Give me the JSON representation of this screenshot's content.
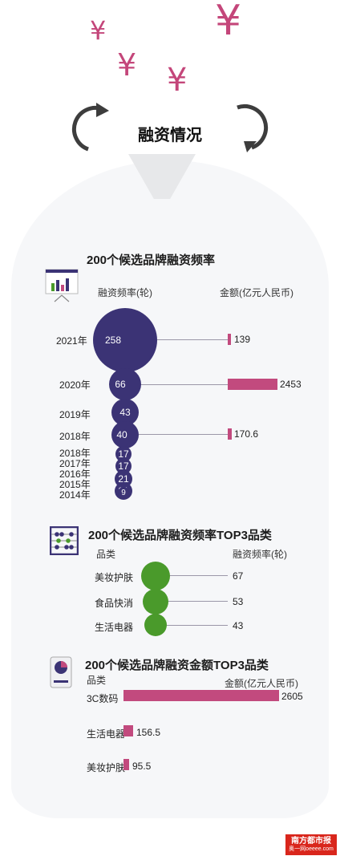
{
  "header": {
    "title": "融资情况"
  },
  "colors": {
    "purple": "#3b3375",
    "pink": "#c24a7e",
    "green": "#4a9a2b"
  },
  "icons": [
    "yen-icon",
    "refresh-left-arrow-icon",
    "refresh-right-arrow-icon",
    "bar-chart-icon",
    "abacus-icon",
    "pie-chart-icon"
  ],
  "section1": {
    "title": "200个候选品牌融资频率",
    "col_left": "融资频率(轮)",
    "col_right": "金额(亿元人民币)"
  },
  "section2": {
    "title": "200个候选品牌融资频率TOP3品类",
    "col_left": "品类",
    "col_right": "融资频率(轮)"
  },
  "section3": {
    "title": "200个候选品牌融资金额TOP3品类",
    "col_left": "品类",
    "col_right": "金额(亿元人民币)"
  },
  "logo": {
    "name": "南方都市报",
    "sub": "奥一网oeeee.com"
  },
  "chart_data": [
    {
      "type": "bubble",
      "title": "200个候选品牌融资频率",
      "categories": [
        "2021年",
        "2020年",
        "2019年",
        "2018年",
        "2018年",
        "2017年",
        "2016年",
        "2015年",
        "2014年"
      ],
      "series": [
        {
          "name": "融资频率(轮)",
          "values": [
            258,
            66,
            43,
            40,
            17,
            17,
            21,
            21,
            9
          ]
        },
        {
          "name": "金额(亿元人民币)",
          "values": [
            139,
            2453,
            null,
            170.6,
            null,
            null,
            null,
            null,
            null
          ]
        }
      ]
    },
    {
      "type": "bubble",
      "title": "200个候选品牌融资频率TOP3品类",
      "categories": [
        "美妆护肤",
        "食品快消",
        "生活电器"
      ],
      "values": [
        67,
        53,
        43
      ],
      "ylabel": "融资频率(轮)"
    },
    {
      "type": "bar",
      "title": "200个候选品牌融资金额TOP3品类",
      "categories": [
        "3C数码",
        "生活电器",
        "美妆护肤"
      ],
      "values": [
        2605,
        156.5,
        95.5
      ],
      "ylabel": "金额(亿元人民币)"
    }
  ]
}
